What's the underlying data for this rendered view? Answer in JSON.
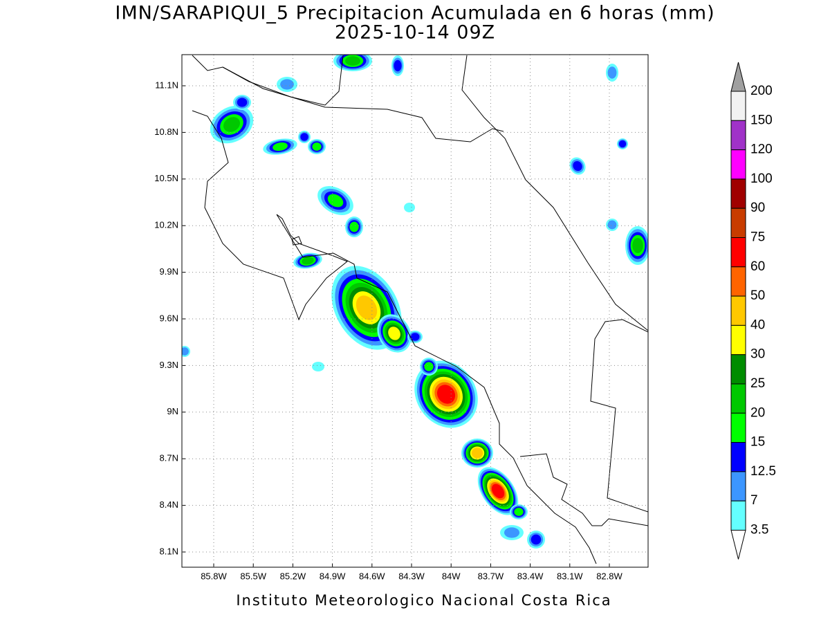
{
  "header": {
    "title": "IMN/SARAPIQUI_5 Precipitacion Acumulada en 6 horas (mm)",
    "subtitle": "2025-10-14 09Z"
  },
  "map": {
    "lat_labels": [
      "11.1N",
      "10.8N",
      "10.5N",
      "10.2N",
      "9.9N",
      "9.6N",
      "9.3N",
      "9N",
      "8.7N",
      "8.4N",
      "8.1N"
    ],
    "lon_labels": [
      "85.8W",
      "85.5W",
      "85.2W",
      "84.9W",
      "84.6W",
      "84.3W",
      "84W",
      "83.7W",
      "83.4W",
      "83.1W",
      "82.8W"
    ],
    "grid": true
  },
  "colorbar": {
    "labels": [
      "200",
      "150",
      "120",
      "100",
      "90",
      "75",
      "60",
      "50",
      "40",
      "30",
      "25",
      "20",
      "15",
      "12.5",
      "7",
      "3.5"
    ],
    "colors": [
      "#f2f2f2",
      "#a032c8",
      "#ff00ff",
      "#a00000",
      "#c83c00",
      "#ff0000",
      "#ff6400",
      "#ffc800",
      "#ffff00",
      "#008c00",
      "#00c800",
      "#00ff00",
      "#0000ff",
      "#3c96ff",
      "#64ffff"
    ],
    "over_color": "#a0a0a0",
    "under_color": "#ffffff"
  },
  "footer": "Instituto Meteorologico Nacional Costa Rica"
}
